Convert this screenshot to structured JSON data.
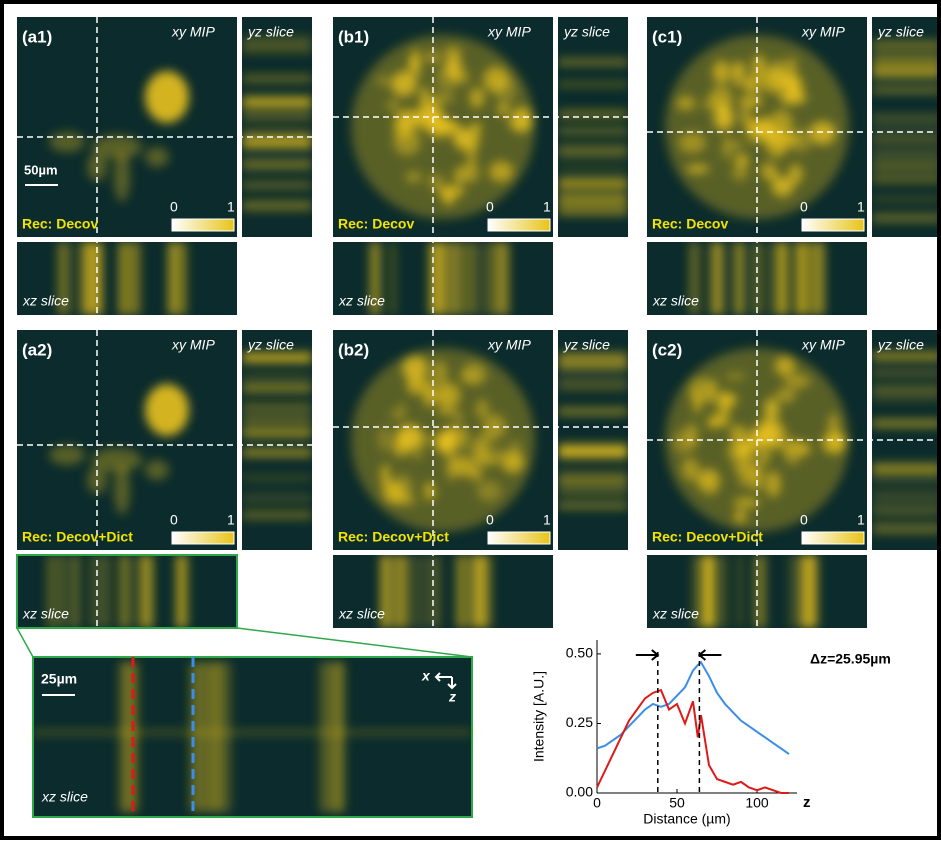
{
  "panels": [
    {
      "label": "(a1)",
      "method": "Rec: Decov"
    },
    {
      "label": "(b1)",
      "method": "Rec: Decov"
    },
    {
      "label": "(c1)",
      "method": "Rec: Decov"
    },
    {
      "label": "(a2)",
      "method": "Rec: Decov+Dict"
    },
    {
      "label": "(b2)",
      "method": "Rec: Decov+Dict"
    },
    {
      "label": "(c2)",
      "method": "Rec: Decov+Dict"
    }
  ],
  "panel_text": {
    "xy": "xy MIP",
    "yz": "yz slice",
    "xz": "xz slice",
    "colorbar_min": 0,
    "colorbar_max": 1
  },
  "scale_bar": "50µm",
  "inset": {
    "scale_bar": "25µm",
    "label": "xz slice",
    "axis_x": "x",
    "axis_z": "z"
  },
  "chart_data": {
    "type": "line",
    "x_label": "Distance (µm)",
    "y_label": "Intensity [A.U.]",
    "x_end_label": "z",
    "annotation": "Δz=25.95µm",
    "x": [
      0,
      5,
      10,
      15,
      20,
      25,
      30,
      35,
      40,
      45,
      50,
      55,
      60,
      63,
      65,
      70,
      75,
      80,
      85,
      90,
      95,
      100,
      105,
      110,
      115,
      120
    ],
    "series": [
      {
        "color": "#3a8ee8",
        "values": [
          0.16,
          0.17,
          0.19,
          0.21,
          0.24,
          0.27,
          0.3,
          0.32,
          0.31,
          0.32,
          0.35,
          0.38,
          0.44,
          0.46,
          0.47,
          0.42,
          0.36,
          0.32,
          0.29,
          0.26,
          0.24,
          0.22,
          0.2,
          0.18,
          0.16,
          0.14
        ]
      },
      {
        "color": "#e01818",
        "values": [
          0.02,
          0.08,
          0.14,
          0.2,
          0.26,
          0.3,
          0.34,
          0.36,
          0.37,
          0.3,
          0.32,
          0.25,
          0.33,
          0.2,
          0.28,
          0.1,
          0.05,
          0.04,
          0.03,
          0.04,
          0.02,
          0.01,
          0.02,
          0.01,
          0.0,
          0.0
        ]
      }
    ],
    "vlines": [
      38,
      64
    ],
    "xlim": [
      0,
      125
    ],
    "ylim": [
      0,
      0.55
    ],
    "xticks": [
      0,
      50,
      100
    ],
    "yticks": [
      {
        "value": 0,
        "label": "0.00"
      },
      {
        "value": 0.25,
        "label": "0.25"
      },
      {
        "value": 0.5,
        "label": "0.50"
      }
    ]
  }
}
